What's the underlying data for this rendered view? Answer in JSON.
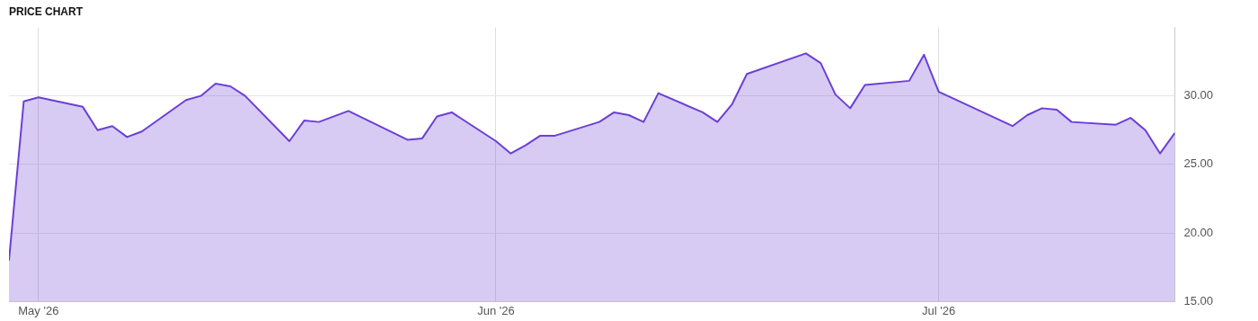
{
  "chart_data": {
    "type": "area",
    "title": "PRICE CHART",
    "x": [
      "2026-04-29",
      "2026-04-30",
      "2026-05-01",
      "2026-05-04",
      "2026-05-05",
      "2026-05-06",
      "2026-05-07",
      "2026-05-08",
      "2026-05-11",
      "2026-05-12",
      "2026-05-13",
      "2026-05-14",
      "2026-05-15",
      "2026-05-18",
      "2026-05-19",
      "2026-05-20",
      "2026-05-22",
      "2026-05-26",
      "2026-05-27",
      "2026-05-28",
      "2026-05-29",
      "2026-06-01",
      "2026-06-02",
      "2026-06-03",
      "2026-06-04",
      "2026-06-05",
      "2026-06-08",
      "2026-06-09",
      "2026-06-10",
      "2026-06-11",
      "2026-06-12",
      "2026-06-15",
      "2026-06-16",
      "2026-06-17",
      "2026-06-18",
      "2026-06-22",
      "2026-06-23",
      "2026-06-24",
      "2026-06-25",
      "2026-06-26",
      "2026-06-29",
      "2026-06-30",
      "2026-07-01",
      "2026-07-02",
      "2026-07-06",
      "2026-07-07",
      "2026-07-08",
      "2026-07-09",
      "2026-07-10",
      "2026-07-13",
      "2026-07-14",
      "2026-07-15",
      "2026-07-16",
      "2026-07-17"
    ],
    "series": [
      {
        "color": "#6b3fd6",
        "values": [
          18.0,
          29.6,
          29.9,
          29.2,
          27.5,
          27.8,
          27.0,
          27.4,
          29.7,
          30.0,
          30.9,
          30.7,
          30.0,
          26.7,
          28.2,
          28.1,
          28.9,
          26.8,
          26.9,
          28.5,
          28.8,
          26.7,
          25.8,
          26.4,
          27.1,
          27.1,
          28.1,
          28.8,
          28.6,
          28.1,
          30.2,
          28.8,
          28.1,
          29.4,
          31.6,
          33.1,
          32.4,
          30.1,
          29.1,
          30.8,
          31.1,
          33.0,
          30.3,
          29.8,
          27.8,
          28.6,
          29.1,
          29.0,
          28.1,
          27.9,
          28.4,
          27.5,
          25.8,
          27.3
        ]
      }
    ],
    "xlim": [
      "2026-04-29",
      "2026-07-17"
    ],
    "xticks": [
      {
        "value": "2026-05-01",
        "label": "May '26"
      },
      {
        "value": "2026-06-01",
        "label": "Jun '26"
      },
      {
        "value": "2026-07-01",
        "label": "Jul '26"
      }
    ],
    "ylim": [
      15,
      35
    ],
    "yticks": [
      {
        "value": 15,
        "label": "15.00"
      },
      {
        "value": 20,
        "label": "20.00"
      },
      {
        "value": 25,
        "label": "25.00"
      },
      {
        "value": 30,
        "label": "30.00"
      }
    ],
    "grid": true
  }
}
